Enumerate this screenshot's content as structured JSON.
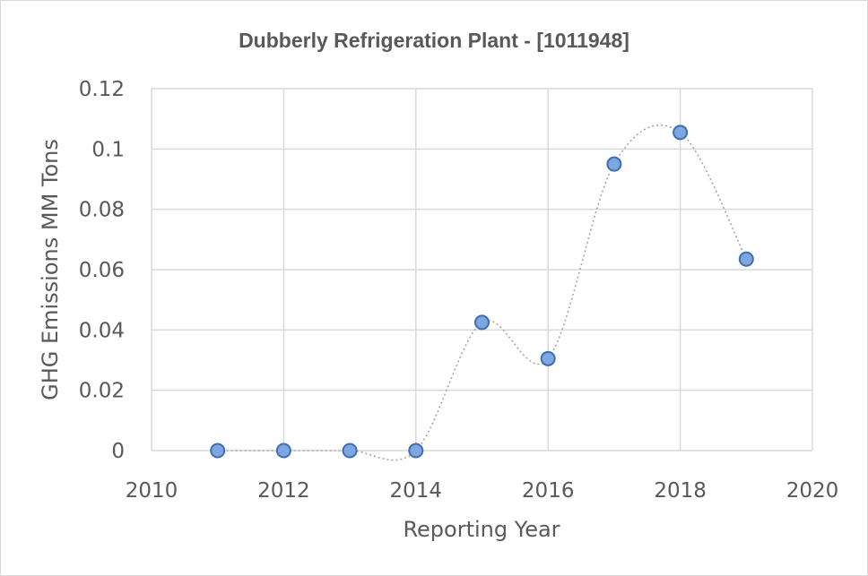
{
  "chart_data": {
    "type": "scatter",
    "title": "Dubberly Refrigeration Plant - [1011948]",
    "xlabel": "Reporting Year",
    "ylabel": "GHG Emissions MM Tons",
    "xlim": [
      2010,
      2020
    ],
    "ylim": [
      0,
      0.12
    ],
    "x_ticks": [
      "2010",
      "2012",
      "2014",
      "2016",
      "2018",
      "2020"
    ],
    "y_ticks": [
      "0",
      "0.02",
      "0.04",
      "0.06",
      "0.08",
      "0.1",
      "0.12"
    ],
    "grid": true,
    "smoothed_line": true,
    "series": [
      {
        "name": "GHG Emissions",
        "x": [
          2011,
          2012,
          2013,
          2014,
          2015,
          2016,
          2017,
          2018,
          2019
        ],
        "y": [
          0,
          0,
          0,
          0,
          0.0425,
          0.0305,
          0.095,
          0.1055,
          0.0635
        ]
      }
    ],
    "colors": {
      "marker_fill": "#7ea6e0",
      "marker_stroke": "#3f6fb0",
      "line": "#a6a6a6"
    }
  }
}
